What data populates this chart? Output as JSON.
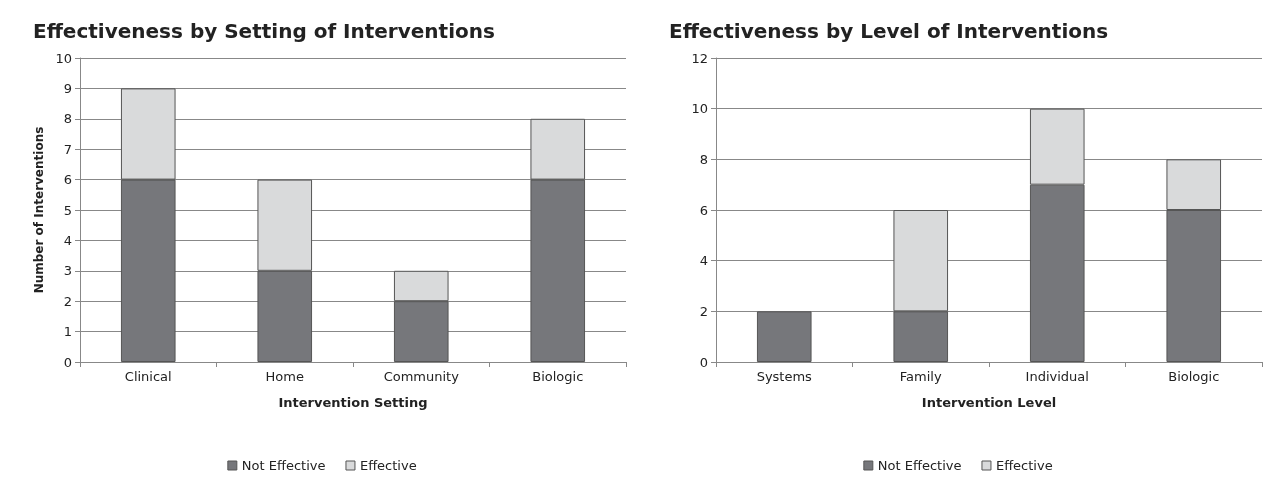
{
  "chart_data": [
    {
      "type": "bar",
      "title": "Effectiveness by Setting of Interventions",
      "xlabel": "Intervention Setting",
      "ylabel": "Number of Interventions",
      "categories": [
        "Clinical",
        "Home",
        "Community",
        "Biologic"
      ],
      "stacked": true,
      "series": [
        {
          "name": "Not Effective",
          "color": "#76777b",
          "values": [
            6,
            3,
            2,
            6
          ]
        },
        {
          "name": "Effective",
          "color": "#d9dadb",
          "values": [
            3,
            3,
            1,
            2
          ]
        }
      ],
      "ylim": [
        0,
        10
      ],
      "yticks": [
        0,
        1,
        2,
        3,
        4,
        5,
        6,
        7,
        8,
        9,
        10
      ],
      "grid": "y",
      "legend": "bottom"
    },
    {
      "type": "bar",
      "title": "Effectiveness by Level of Interventions",
      "xlabel": "Intervention Level",
      "categories": [
        "Systems",
        "Family",
        "Individual",
        "Biologic"
      ],
      "stacked": true,
      "series": [
        {
          "name": "Not Effective",
          "color": "#76777b",
          "values": [
            2,
            2,
            7,
            6
          ]
        },
        {
          "name": "Effective",
          "color": "#d9dadb",
          "values": [
            0,
            4,
            3,
            2
          ]
        }
      ],
      "ylim": [
        0,
        12
      ],
      "yticks": [
        0,
        2,
        4,
        6,
        8,
        10,
        12
      ],
      "grid": "y",
      "legend": "bottom"
    }
  ]
}
